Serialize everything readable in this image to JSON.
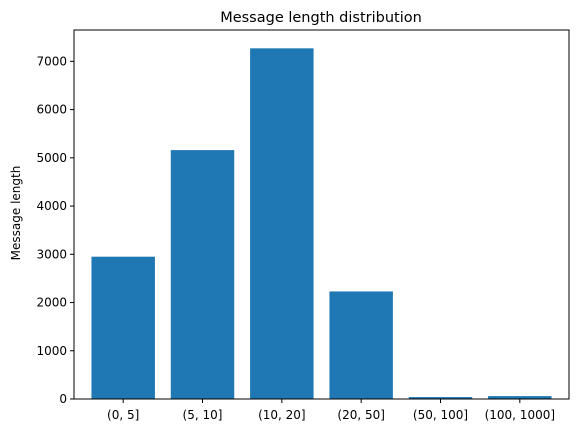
{
  "chart_data": {
    "type": "bar",
    "title": "Message length distribution",
    "xlabel": "",
    "ylabel": "Message length",
    "categories": [
      "(0, 5]",
      "(5, 10]",
      "(10, 20]",
      "(20, 50]",
      "(50, 100]",
      "(100, 1000]"
    ],
    "values": [
      2950,
      5160,
      7270,
      2230,
      40,
      60
    ],
    "ylim": [
      0,
      7650
    ],
    "yticks": [
      0,
      1000,
      2000,
      3000,
      4000,
      5000,
      6000,
      7000
    ],
    "grid": false,
    "bar_color": "#1f77b4"
  }
}
